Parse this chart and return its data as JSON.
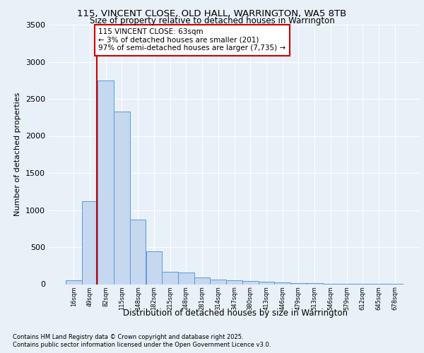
{
  "title1": "115, VINCENT CLOSE, OLD HALL, WARRINGTON, WA5 8TB",
  "title2": "Size of property relative to detached houses in Warrington",
  "xlabel": "Distribution of detached houses by size in Warrington",
  "ylabel": "Number of detached properties",
  "categories": [
    "16sqm",
    "49sqm",
    "82sqm",
    "115sqm",
    "148sqm",
    "182sqm",
    "215sqm",
    "248sqm",
    "281sqm",
    "314sqm",
    "347sqm",
    "380sqm",
    "413sqm",
    "446sqm",
    "479sqm",
    "513sqm",
    "546sqm",
    "579sqm",
    "612sqm",
    "645sqm",
    "678sqm"
  ],
  "values": [
    50,
    1120,
    2750,
    2330,
    870,
    440,
    165,
    160,
    90,
    60,
    50,
    45,
    30,
    20,
    15,
    10,
    5,
    3,
    2,
    1,
    1
  ],
  "bar_color": "#c5d8f0",
  "bar_edge_color": "#5b9bd5",
  "background_color": "#e8f0f8",
  "grid_color": "#ffffff",
  "vline_color": "#cc0000",
  "vline_x": 1.45,
  "annotation_text": "115 VINCENT CLOSE: 63sqm\n← 3% of detached houses are smaller (201)\n97% of semi-detached houses are larger (7,735) →",
  "annotation_box_color": "#ffffff",
  "annotation_box_edge": "#cc0000",
  "footnote1": "Contains HM Land Registry data © Crown copyright and database right 2025.",
  "footnote2": "Contains public sector information licensed under the Open Government Licence v3.0.",
  "ylim": [
    0,
    3500
  ],
  "yticks": [
    0,
    500,
    1000,
    1500,
    2000,
    2500,
    3000,
    3500
  ]
}
